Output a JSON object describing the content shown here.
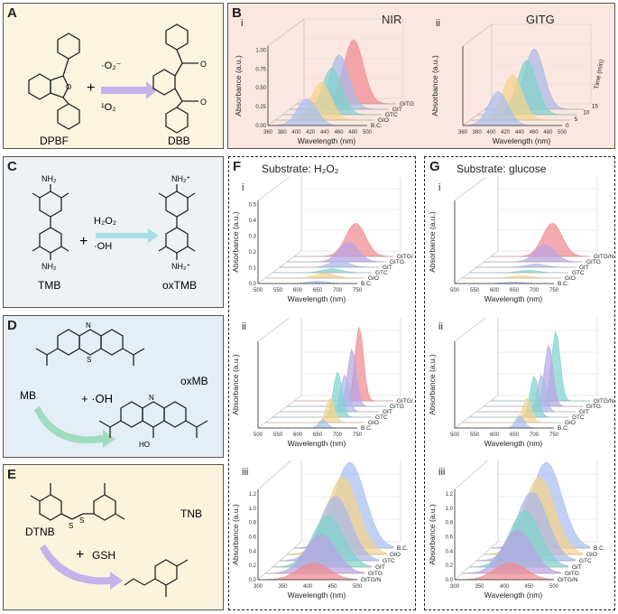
{
  "colors": {
    "panelA": "#fbf4df",
    "panelB": "#fbe7e1",
    "panelC": "#eef2f5",
    "panelD": "#e4eef7",
    "panelE": "#fbf4dc",
    "arrow": "#c3b3ea",
    "arrowC": "#a9dde4",
    "arrowD": "#9fdcbf",
    "red": "#f08a90",
    "blue": "#a8bff0",
    "teal": "#7fd3cc",
    "yellow": "#f5d38a",
    "purple": "#b8a4e3",
    "periwinkle": "#aab8e8"
  },
  "panels": {
    "A": {
      "label": "A",
      "reactant": "DPBF",
      "product": "DBB",
      "plus": "+",
      "reagent1": "·O₂⁻",
      "reagent2": "¹O₂"
    },
    "B": {
      "label": "B",
      "sub_i": "i",
      "sub_ii": "ii",
      "title_i": "NIR",
      "title_ii": "GITG"
    },
    "C": {
      "label": "C",
      "reactant": "TMB",
      "product": "oxTMB",
      "plus": "+",
      "reagent1": "H₂O₂",
      "reagent2": "·OH",
      "nh2_top": "NH₂",
      "nh2_bot": "NH₂",
      "nh2p_top": "NH₂⁺",
      "nh2p_bot": "NH₂⁺"
    },
    "D": {
      "label": "D",
      "reactant": "MB",
      "product": "oxMB",
      "plus": "+ ·OH",
      "ho": "HO",
      "s": "S",
      "n": "N"
    },
    "E": {
      "label": "E",
      "reactant": "DTNB",
      "product": "TNB",
      "plus": "+",
      "reagent": "GSH"
    },
    "F": {
      "label": "F",
      "title": "Substrate: H₂O₂",
      "sub_i": "i",
      "sub_ii": "ii",
      "sub_iii": "iii"
    },
    "G": {
      "label": "G",
      "title": "Substrate: glucose",
      "sub_i": "i",
      "sub_ii": "ii",
      "sub_iii": "iii"
    }
  },
  "chart_data": [
    {
      "id": "B-i",
      "type": "area",
      "title": "NIR",
      "xlabel": "Wavelength (nm)",
      "ylabel": "Absorbance (a.u.)",
      "x_ticks": [
        "360",
        "380",
        "400",
        "420",
        "440",
        "460",
        "480",
        "500"
      ],
      "y_ticks": [
        "0.00",
        "0.25",
        "0.50",
        "0.75",
        "1.00"
      ],
      "series_labels": [
        "GITG",
        "GIT",
        "GTC",
        "GIO",
        "B.C."
      ],
      "series": [
        {
          "name": "B.C.",
          "peak_nm": 415,
          "height": 0.35,
          "color": "blue"
        },
        {
          "name": "GIO",
          "peak_nm": 425,
          "height": 0.5,
          "color": "yellow"
        },
        {
          "name": "GTC",
          "peak_nm": 430,
          "height": 0.62,
          "color": "teal"
        },
        {
          "name": "GIT",
          "peak_nm": 430,
          "height": 0.72,
          "color": "periwinkle"
        },
        {
          "name": "GITG",
          "peak_nm": 440,
          "height": 0.85,
          "color": "red"
        }
      ]
    },
    {
      "id": "B-ii",
      "type": "area",
      "title": "GITG",
      "xlabel": "Wavelength (nm)",
      "ylabel": "Absorbance (a.u.)",
      "zlabel": "Time (min)",
      "x_ticks": [
        "360",
        "380",
        "400",
        "420",
        "440",
        "460",
        "480",
        "500"
      ],
      "z_ticks": [
        "0",
        "5",
        "10",
        "15"
      ],
      "series": [
        {
          "name": "0",
          "peak_nm": 410,
          "height": 0.45,
          "color": "blue"
        },
        {
          "name": "5",
          "peak_nm": 420,
          "height": 0.6,
          "color": "yellow"
        },
        {
          "name": "10",
          "peak_nm": 430,
          "height": 0.72,
          "color": "teal"
        },
        {
          "name": "15",
          "peak_nm": 430,
          "height": 0.8,
          "color": "periwinkle"
        }
      ]
    },
    {
      "id": "F-i",
      "type": "area",
      "xlabel": "Wavelength (nm)",
      "ylabel": "Absorbance (a.u.)",
      "x_ticks": [
        "500",
        "550",
        "600",
        "650",
        "700",
        "750"
      ],
      "y_ticks": [
        "0.0",
        "0.1",
        "0.2",
        "0.3",
        "0.4",
        "0.5"
      ],
      "series_labels": [
        "GITG/N",
        "GITG",
        "GIT",
        "GTC",
        "GIO",
        "B.C."
      ],
      "series": [
        {
          "name": "B.C.",
          "peak_nm": 650,
          "height": 0.03,
          "color": "blue"
        },
        {
          "name": "GIO",
          "peak_nm": 650,
          "height": 0.06,
          "color": "yellow"
        },
        {
          "name": "GTC",
          "peak_nm": 650,
          "height": 0.05,
          "color": "teal"
        },
        {
          "name": "GIT",
          "peak_nm": 650,
          "height": 0.08,
          "color": "periwinkle"
        },
        {
          "name": "GITG",
          "peak_nm": 655,
          "height": 0.25,
          "color": "purple"
        },
        {
          "name": "GITG/N",
          "peak_nm": 655,
          "height": 0.42,
          "color": "red"
        }
      ]
    },
    {
      "id": "F-ii",
      "type": "area",
      "xlabel": "Wavelength (nm)",
      "ylabel": "Absorbance (a.u.)",
      "x_ticks": [
        "500",
        "550",
        "600",
        "650",
        "700",
        "750"
      ],
      "series_labels": [
        "GITG/N",
        "GITG",
        "GIT",
        "GTC",
        "GIO",
        "B.C."
      ],
      "series": [
        {
          "name": "B.C.",
          "peak_nm": 664,
          "height": 0.1,
          "color": "blue"
        },
        {
          "name": "GIO",
          "peak_nm": 664,
          "height": 0.3,
          "color": "yellow"
        },
        {
          "name": "GTC",
          "peak_nm": 664,
          "height": 0.55,
          "color": "teal"
        },
        {
          "name": "GIT",
          "peak_nm": 664,
          "height": 0.45,
          "color": "periwinkle"
        },
        {
          "name": "GITG",
          "peak_nm": 664,
          "height": 0.7,
          "color": "purple"
        },
        {
          "name": "GITG/N",
          "peak_nm": 664,
          "height": 0.9,
          "color": "red"
        }
      ]
    },
    {
      "id": "F-iii",
      "type": "area",
      "xlabel": "Wavelength (nm)",
      "ylabel": "Absorbance (a.u.)",
      "x_ticks": [
        "300",
        "350",
        "400",
        "450",
        "500"
      ],
      "y_ticks": [
        "0.0",
        "0.2",
        "0.4",
        "0.6",
        "0.8",
        "1.0",
        "1.2"
      ],
      "series_labels": [
        "B.C.",
        "GIO",
        "GTC",
        "GIT",
        "GITG",
        "GITG/N"
      ],
      "series": [
        {
          "name": "GITG/N",
          "peak_nm": 412,
          "height": 0.2,
          "color": "red"
        },
        {
          "name": "GITG",
          "peak_nm": 412,
          "height": 0.45,
          "color": "purple"
        },
        {
          "name": "GIT",
          "peak_nm": 412,
          "height": 0.6,
          "color": "teal"
        },
        {
          "name": "GTC",
          "peak_nm": 412,
          "height": 0.75,
          "color": "periwinkle"
        },
        {
          "name": "GIO",
          "peak_nm": 412,
          "height": 0.9,
          "color": "yellow"
        },
        {
          "name": "B.C.",
          "peak_nm": 412,
          "height": 1.0,
          "color": "blue"
        }
      ]
    },
    {
      "id": "G-i",
      "type": "area",
      "xlabel": "Wavelength (nm)",
      "ylabel": "Absorbance (a.u.)",
      "x_ticks": [
        "500",
        "550",
        "600",
        "650",
        "700",
        "750"
      ],
      "series_labels": [
        "GITG/N",
        "GITG",
        "GIT",
        "GTC",
        "GIO",
        "B.C."
      ],
      "series": [
        {
          "name": "B.C.",
          "peak_nm": 650,
          "height": 0.02,
          "color": "blue"
        },
        {
          "name": "GIO",
          "peak_nm": 650,
          "height": 0.03,
          "color": "yellow"
        },
        {
          "name": "GTC",
          "peak_nm": 650,
          "height": 0.03,
          "color": "teal"
        },
        {
          "name": "GIT",
          "peak_nm": 650,
          "height": 0.04,
          "color": "periwinkle"
        },
        {
          "name": "GITG",
          "peak_nm": 655,
          "height": 0.22,
          "color": "purple"
        },
        {
          "name": "GITG/N",
          "peak_nm": 655,
          "height": 0.42,
          "color": "red"
        }
      ]
    },
    {
      "id": "G-ii",
      "type": "area",
      "xlabel": "Wavelength (nm)",
      "ylabel": "Absorbance (a.u.)",
      "x_ticks": [
        "500",
        "550",
        "600",
        "650",
        "700",
        "750"
      ],
      "series_labels": [
        "GITG/N",
        "GITG",
        "GIT",
        "GTC",
        "GIO",
        "B.C."
      ],
      "series": [
        {
          "name": "B.C.",
          "peak_nm": 664,
          "height": 0.15,
          "color": "blue"
        },
        {
          "name": "GIO",
          "peak_nm": 664,
          "height": 0.3,
          "color": "yellow"
        },
        {
          "name": "GTC",
          "peak_nm": 664,
          "height": 0.5,
          "color": "teal"
        },
        {
          "name": "GIT",
          "peak_nm": 664,
          "height": 0.45,
          "color": "periwinkle"
        },
        {
          "name": "GITG",
          "peak_nm": 664,
          "height": 0.75,
          "color": "purple"
        },
        {
          "name": "GITG/N",
          "peak_nm": 664,
          "height": 0.85,
          "color": "teal"
        }
      ]
    },
    {
      "id": "G-iii",
      "type": "area",
      "xlabel": "Wavelength (nm)",
      "ylabel": "Absorbance (a.u.)",
      "x_ticks": [
        "300",
        "350",
        "400",
        "450",
        "500"
      ],
      "y_ticks": [
        "0.0",
        "0.2",
        "0.4",
        "0.6",
        "0.8",
        "1.0",
        "1.2"
      ],
      "series_labels": [
        "B.C.",
        "GIO",
        "GTC",
        "GIT",
        "GITG",
        "GITG/N"
      ],
      "series": [
        {
          "name": "GITG/N",
          "peak_nm": 412,
          "height": 0.2,
          "color": "red"
        },
        {
          "name": "GITG",
          "peak_nm": 412,
          "height": 0.5,
          "color": "purple"
        },
        {
          "name": "GIT",
          "peak_nm": 412,
          "height": 0.65,
          "color": "teal"
        },
        {
          "name": "GTC",
          "peak_nm": 412,
          "height": 0.8,
          "color": "periwinkle"
        },
        {
          "name": "GIO",
          "peak_nm": 412,
          "height": 0.9,
          "color": "yellow"
        },
        {
          "name": "B.C.",
          "peak_nm": 412,
          "height": 1.0,
          "color": "blue"
        }
      ]
    }
  ]
}
